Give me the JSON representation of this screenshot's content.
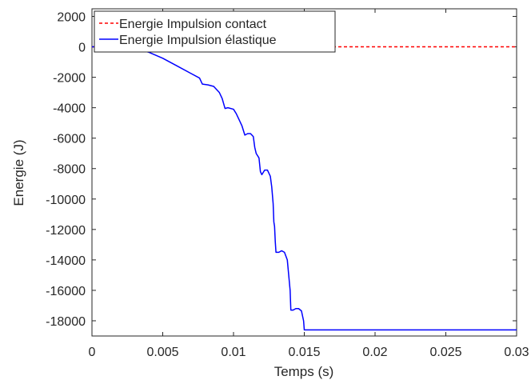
{
  "chart_data": {
    "type": "line",
    "title": "",
    "xlabel": "Temps (s)",
    "ylabel": "Energie (J)",
    "xlim": [
      0,
      0.03
    ],
    "ylim": [
      -19000,
      2500
    ],
    "xticks": [
      0,
      0.005,
      0.01,
      0.015,
      0.02,
      0.025,
      0.03
    ],
    "xtick_labels": [
      "0",
      "0.005",
      "0.01",
      "0.015",
      "0.02",
      "0.025",
      "0.03"
    ],
    "yticks": [
      2000,
      0,
      -2000,
      -4000,
      -6000,
      -8000,
      -10000,
      -12000,
      -14000,
      -16000,
      -18000
    ],
    "ytick_labels": [
      "2000",
      "0",
      "-2000",
      "-4000",
      "-6000",
      "-8000",
      "-10000",
      "-12000",
      "-14000",
      "-16000",
      "-18000"
    ],
    "grid": false,
    "legend_position": "top-left",
    "series": [
      {
        "name": "Energie Impulsion contact",
        "color": "#ff0000",
        "style": "dashed",
        "x": [
          0,
          0.03
        ],
        "y": [
          0,
          0
        ]
      },
      {
        "name": "Energie Impulsion élastique",
        "color": "#0000ff",
        "style": "solid",
        "x": [
          0,
          0.0025,
          0.003,
          0.004,
          0.005,
          0.006,
          0.007,
          0.0076,
          0.0078,
          0.0082,
          0.0086,
          0.009,
          0.0092,
          0.0094,
          0.0096,
          0.01,
          0.0102,
          0.0104,
          0.0106,
          0.0108,
          0.011,
          0.0112,
          0.0114,
          0.0115,
          0.0116,
          0.0118,
          0.0119,
          0.012,
          0.0122,
          0.0124,
          0.0126,
          0.0127,
          0.0128,
          0.01285,
          0.0129,
          0.01295,
          0.013,
          0.0132,
          0.0134,
          0.0136,
          0.0138,
          0.0139,
          0.014,
          0.01405,
          0.0141,
          0.0142,
          0.0144,
          0.0146,
          0.0148,
          0.01495,
          0.015,
          0.03
        ],
        "y": [
          0,
          0,
          -80,
          -350,
          -750,
          -1250,
          -1750,
          -2050,
          -2450,
          -2500,
          -2600,
          -3000,
          -3400,
          -4050,
          -4000,
          -4100,
          -4400,
          -4800,
          -5200,
          -5800,
          -5700,
          -5700,
          -5900,
          -6600,
          -7000,
          -7300,
          -8200,
          -8400,
          -8100,
          -8100,
          -8500,
          -9200,
          -10300,
          -11500,
          -11800,
          -12800,
          -13500,
          -13500,
          -13400,
          -13500,
          -14000,
          -15000,
          -16000,
          -17300,
          -17300,
          -17300,
          -17200,
          -17200,
          -17350,
          -18000,
          -18600,
          -18600
        ]
      }
    ]
  }
}
